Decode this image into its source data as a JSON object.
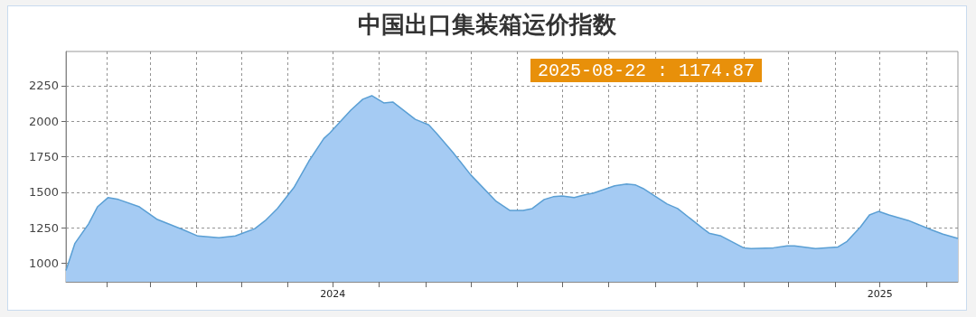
{
  "chart_data": {
    "type": "area",
    "title": "中国出口集装箱运价指数",
    "annotations": [
      "2025-08-22 : 1174.87"
    ],
    "x": [
      "2024-01-05",
      "2024-01-11",
      "2024-01-20",
      "2024-01-26",
      "2024-02-02",
      "2024-02-09",
      "2024-02-23",
      "2024-03-06",
      "2024-03-23",
      "2024-04-02",
      "2024-04-16",
      "2024-04-27",
      "2024-05-10",
      "2024-05-17",
      "2024-05-25",
      "2024-06-05",
      "2024-06-15",
      "2024-06-25",
      "2024-06-29",
      "2024-07-13",
      "2024-07-21",
      "2024-07-27",
      "2024-08-04",
      "2024-08-10",
      "2024-08-25",
      "2024-09-03",
      "2024-09-08",
      "2024-09-19",
      "2024-10-01",
      "2024-10-18",
      "2024-10-27",
      "2024-11-05",
      "2024-11-11",
      "2024-11-19",
      "2024-11-25",
      "2024-12-01",
      "2024-12-09",
      "2024-12-16",
      "2024-12-22",
      "2025-01-05",
      "2025-01-13",
      "2025-01-19",
      "2025-01-24",
      "2025-02-09",
      "2025-02-16",
      "2025-03-05",
      "2025-03-09",
      "2025-03-17",
      "2025-04-01",
      "2025-04-06",
      "2025-04-21",
      "2025-04-30",
      "2025-05-05",
      "2025-05-19",
      "2025-06-03",
      "2025-06-09",
      "2025-06-18",
      "2025-06-24",
      "2025-06-30",
      "2025-07-07",
      "2025-07-20",
      "2025-08-04",
      "2025-08-12",
      "2025-08-22"
    ],
    "series": [
      {
        "color": "#5a9fd4",
        "values": [
          949,
          1141,
          1276,
          1397,
          1462,
          1449,
          1397,
          1308,
          1237,
          1192,
          1180,
          1192,
          1244,
          1301,
          1385,
          1532,
          1718,
          1878,
          1917,
          2077,
          2154,
          2179,
          2128,
          2135,
          2013,
          1974,
          1917,
          1782,
          1622,
          1436,
          1372,
          1372,
          1385,
          1449,
          1468,
          1474,
          1462,
          1481,
          1494,
          1545,
          1558,
          1551,
          1526,
          1417,
          1385,
          1244,
          1212,
          1192,
          1109,
          1103,
          1109,
          1122,
          1122,
          1103,
          1115,
          1154,
          1256,
          1340,
          1365,
          1340,
          1301,
          1237,
          1205,
          1174.87
        ]
      }
    ],
    "xlim": [
      "2024-01-05",
      "2025-08-22"
    ],
    "xticks": [
      {
        "value": "2024-02-01",
        "label": null
      },
      {
        "value": "2024-03-01",
        "label": null
      },
      {
        "value": "2024-04-01",
        "label": null
      },
      {
        "value": "2024-05-01",
        "label": null
      },
      {
        "value": "2024-06-01",
        "label": null
      },
      {
        "value": "2024-07-01",
        "label": "2024"
      },
      {
        "value": "2024-08-01",
        "label": null
      },
      {
        "value": "2024-09-01",
        "label": null
      },
      {
        "value": "2024-10-01",
        "label": null
      },
      {
        "value": "2024-11-01",
        "label": null
      },
      {
        "value": "2024-12-01",
        "label": null
      },
      {
        "value": "2025-01-01",
        "label": null
      },
      {
        "value": "2025-02-01",
        "label": null
      },
      {
        "value": "2025-03-01",
        "label": null
      },
      {
        "value": "2025-04-01",
        "label": null
      },
      {
        "value": "2025-05-01",
        "label": null
      },
      {
        "value": "2025-06-01",
        "label": null
      },
      {
        "value": "2025-07-01",
        "label": "2025"
      },
      {
        "value": "2025-08-01",
        "label": null
      }
    ],
    "ylim": [
      870,
      2490
    ],
    "yticks": [
      1000,
      1250,
      1500,
      1750,
      2000,
      2250
    ],
    "grid": true,
    "marker": "none",
    "line_style": "solid"
  }
}
